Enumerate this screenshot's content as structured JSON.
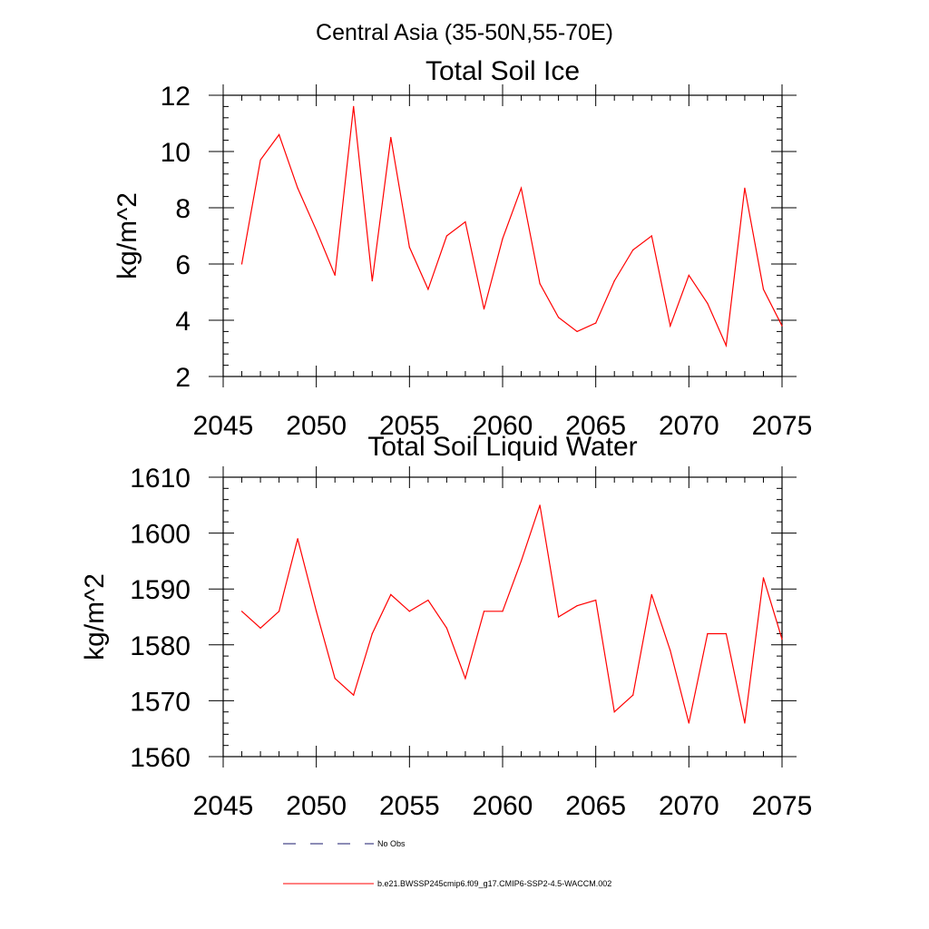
{
  "page_title": "Central Asia (35-50N,55-70E)",
  "legend": {
    "no_obs_label": "No Obs",
    "model_label": "b.e21.BWSSP245cmip6.f09_g17.CMIP6-SSP2-4.5-WACCM.002",
    "no_obs_color": "#1a1a6e",
    "model_color": "#ff0000"
  },
  "chart_data": [
    {
      "type": "line",
      "title": "Total Soil Ice",
      "ylabel": "kg/m^2",
      "xlabel": "",
      "xlim": [
        2045,
        2075
      ],
      "ylim": [
        2,
        12
      ],
      "x_ticks": [
        2045,
        2050,
        2055,
        2060,
        2065,
        2070,
        2075
      ],
      "y_ticks": [
        2,
        4,
        6,
        8,
        10,
        12
      ],
      "x_minor_step": 1,
      "y_minor_step": 0.4,
      "series": [
        {
          "color": "#ff0000",
          "x": [
            2046,
            2047,
            2048,
            2049,
            2050,
            2051,
            2052,
            2053,
            2054,
            2055,
            2056,
            2057,
            2058,
            2059,
            2060,
            2061,
            2062,
            2063,
            2064,
            2065,
            2066,
            2067,
            2068,
            2069,
            2070,
            2071,
            2072,
            2073,
            2074,
            2075
          ],
          "values": [
            6.0,
            9.7,
            10.6,
            8.7,
            7.2,
            5.6,
            11.6,
            5.4,
            10.5,
            6.6,
            5.1,
            7.0,
            7.5,
            4.4,
            6.9,
            8.7,
            5.3,
            4.1,
            3.6,
            3.9,
            5.4,
            6.5,
            7.0,
            3.8,
            5.6,
            4.6,
            3.1,
            8.7,
            5.1,
            3.8
          ]
        }
      ]
    },
    {
      "type": "line",
      "title": "Total Soil Liquid Water",
      "ylabel": "kg/m^2",
      "xlabel": "",
      "xlim": [
        2045,
        2075
      ],
      "ylim": [
        1560,
        1610
      ],
      "x_ticks": [
        2045,
        2050,
        2055,
        2060,
        2065,
        2070,
        2075
      ],
      "y_ticks": [
        1560,
        1570,
        1580,
        1590,
        1600,
        1610
      ],
      "x_minor_step": 1,
      "y_minor_step": 2,
      "series": [
        {
          "color": "#ff0000",
          "x": [
            2046,
            2047,
            2048,
            2049,
            2050,
            2051,
            2052,
            2053,
            2054,
            2055,
            2056,
            2057,
            2058,
            2059,
            2060,
            2061,
            2062,
            2063,
            2064,
            2065,
            2066,
            2067,
            2068,
            2069,
            2070,
            2071,
            2072,
            2073,
            2074,
            2075
          ],
          "values": [
            1586,
            1583,
            1586,
            1599,
            1586,
            1574,
            1571,
            1582,
            1589,
            1586,
            1588,
            1583,
            1574,
            1586,
            1586,
            1595,
            1605,
            1585,
            1587,
            1588,
            1568,
            1571,
            1589,
            1579,
            1566,
            1582,
            1582,
            1566,
            1592,
            1581
          ]
        }
      ]
    }
  ]
}
